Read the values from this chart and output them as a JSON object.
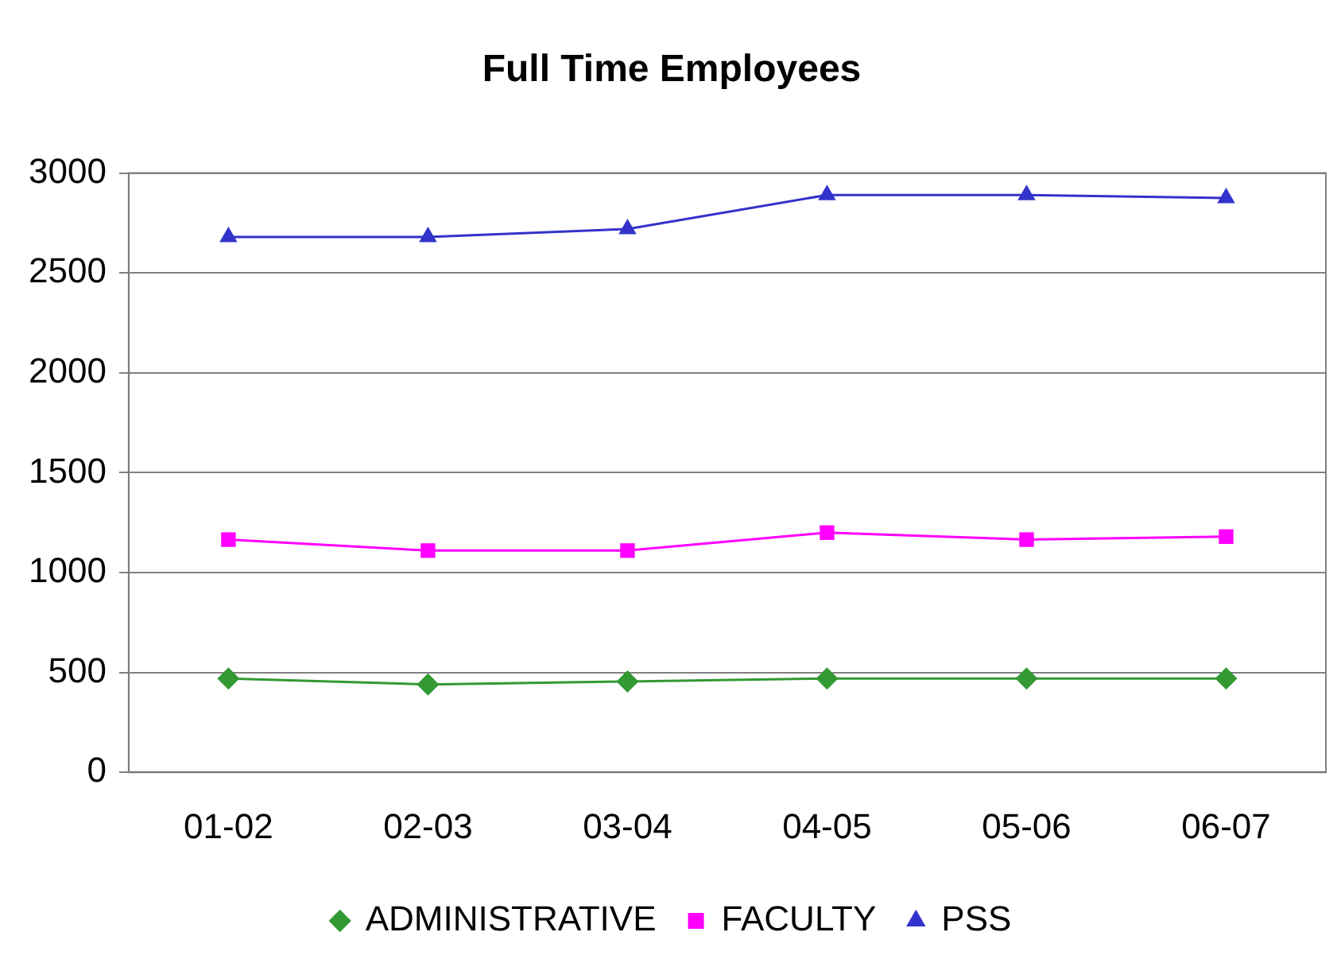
{
  "chart_data": {
    "type": "line",
    "title": "Full Time Employees",
    "categories": [
      "01-02",
      "02-03",
      "03-04",
      "04-05",
      "05-06",
      "06-07"
    ],
    "series": [
      {
        "name": "ADMINISTRATIVE",
        "color": "#339933",
        "marker": "diamond",
        "values": [
          470,
          440,
          455,
          470,
          470,
          470
        ]
      },
      {
        "name": "FACULTY",
        "color": "#ff00ff",
        "marker": "square",
        "values": [
          1165,
          1110,
          1110,
          1200,
          1165,
          1180
        ]
      },
      {
        "name": "PSS",
        "color": "#3333cc",
        "marker": "triangle",
        "values": [
          2680,
          2680,
          2720,
          2890,
          2890,
          2875
        ]
      }
    ],
    "ylim": [
      0,
      3000
    ],
    "yticks": [
      0,
      500,
      1000,
      1500,
      2000,
      2500,
      3000
    ],
    "grid": "y",
    "legend": "bottom",
    "line_style": "solid"
  }
}
